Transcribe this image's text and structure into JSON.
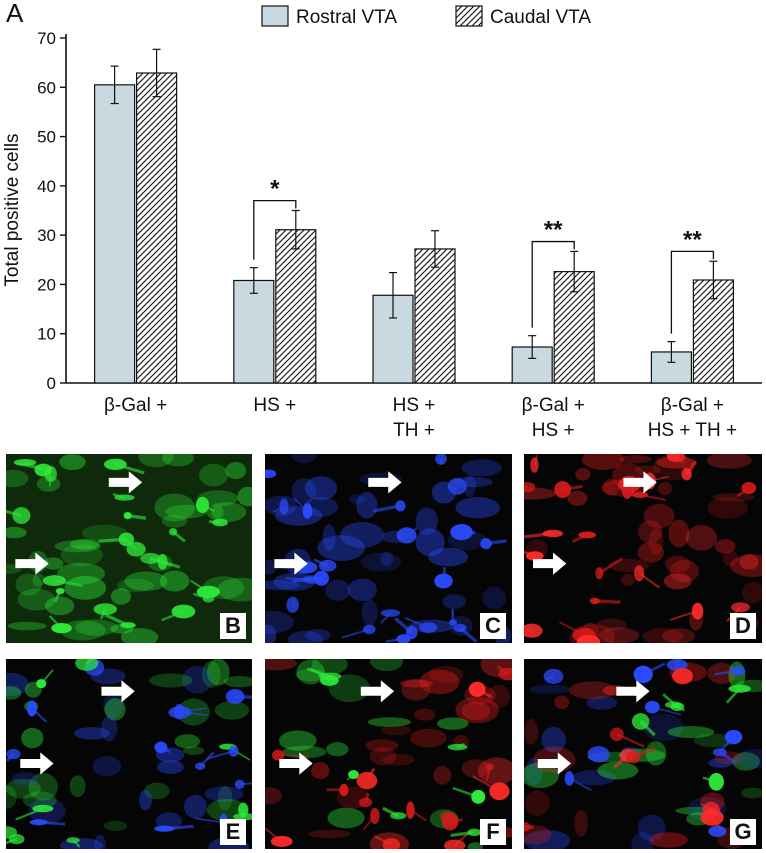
{
  "panel_letter": "A",
  "chart_data": {
    "type": "bar",
    "title": "",
    "xlabel": "",
    "ylabel": "Total positive cells",
    "ylim": [
      0,
      70
    ],
    "yticks": [
      0,
      10,
      20,
      30,
      40,
      50,
      60,
      70
    ],
    "categories": [
      [
        "β-Gal +"
      ],
      [
        "HS +"
      ],
      [
        "HS +",
        "TH +"
      ],
      [
        "β-Gal +",
        "HS +"
      ],
      [
        "β-Gal +",
        "HS + TH +"
      ]
    ],
    "series": [
      {
        "name": "Rostral VTA",
        "values": [
          60.5,
          20.8,
          17.8,
          7.3,
          6.3
        ],
        "errors": [
          3.8,
          2.6,
          4.6,
          2.3,
          2.1
        ],
        "fill": "#c8dae0",
        "pattern": "solid"
      },
      {
        "name": "Caudal VTA",
        "values": [
          62.9,
          31.1,
          27.2,
          22.6,
          20.9
        ],
        "errors": [
          4.8,
          3.9,
          3.7,
          4.1,
          3.8
        ],
        "fill": "#ffffff",
        "pattern": "hatched"
      }
    ],
    "legend_position": "top",
    "grid": false,
    "annotations": [
      {
        "category_index": 1,
        "text": "*"
      },
      {
        "category_index": 3,
        "text": "**"
      },
      {
        "category_index": 4,
        "text": "**"
      }
    ]
  },
  "micrographs": [
    {
      "label": "B",
      "channel": "green",
      "color": "#2ee83a"
    },
    {
      "label": "C",
      "channel": "blue",
      "color": "#2a4bff"
    },
    {
      "label": "D",
      "channel": "red",
      "color": "#ff2a2a"
    },
    {
      "label": "E",
      "channel": "green + blue",
      "color": "#2ee83a"
    },
    {
      "label": "F",
      "channel": "green + red",
      "color": "#ff2a2a"
    },
    {
      "label": "G",
      "channel": "green + blue + red",
      "color": "#ff2a2a"
    }
  ]
}
